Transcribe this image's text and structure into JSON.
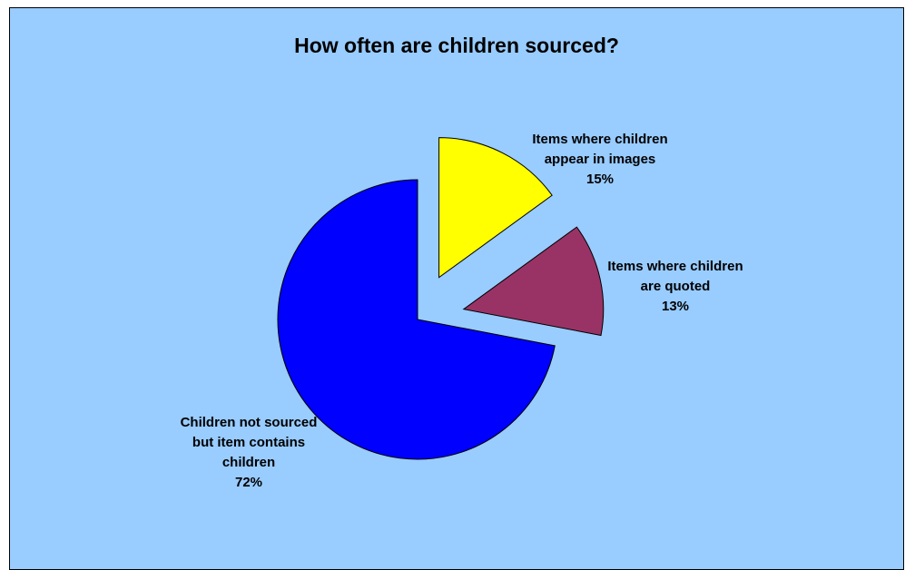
{
  "chart_data": {
    "type": "pie",
    "title": "How often are children sourced?",
    "exploded": true,
    "slices": [
      {
        "label_lines": [
          "Items where children",
          "appear in images"
        ],
        "percent_label": "15%",
        "value": 15,
        "color": "#ffff00"
      },
      {
        "label_lines": [
          "Items where children",
          "are quoted"
        ],
        "percent_label": "13%",
        "value": 13,
        "color": "#993366"
      },
      {
        "label_lines": [
          "Children not sourced",
          "but item contains",
          "children"
        ],
        "percent_label": "72%",
        "value": 72,
        "color": "#0000ff"
      }
    ],
    "background": "#99ccff"
  }
}
